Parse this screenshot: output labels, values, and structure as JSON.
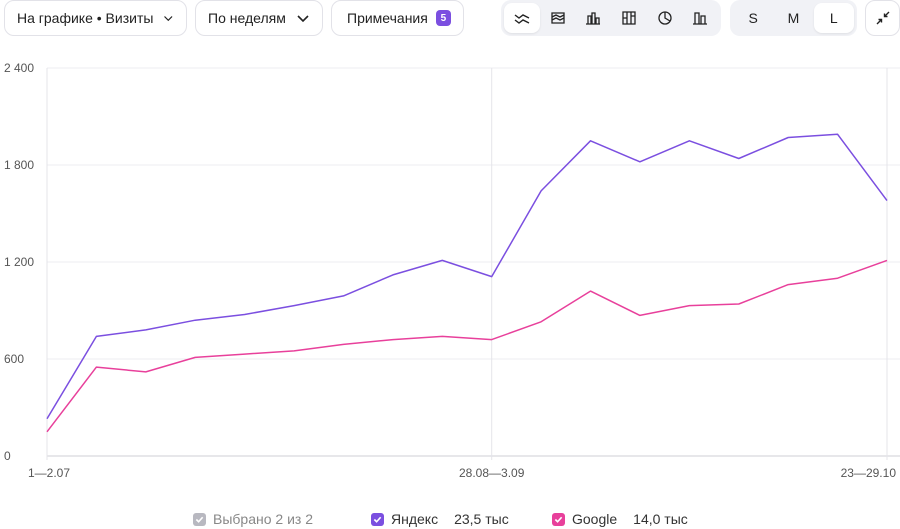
{
  "toolbar": {
    "metric_dropdown": "На графике • Визиты",
    "period_dropdown": "По неделям",
    "notes_label": "Примечания",
    "notes_count": "5",
    "chart_type_icons": [
      "line-chart-icon",
      "area-chart-icon",
      "column-chart-icon",
      "stacked-column-icon",
      "pie-chart-icon",
      "bar-chart-icon"
    ],
    "sizes": [
      "S",
      "M",
      "L"
    ],
    "active_size": "L"
  },
  "legend": {
    "selected_label": "Выбрано 2 из 2",
    "items": [
      {
        "name": "Яндекс",
        "total": "23,5 тыс",
        "color": "#7b4fe0"
      },
      {
        "name": "Google",
        "total": "14,0 тыс",
        "color": "#e8409b"
      }
    ]
  },
  "chart_data": {
    "type": "line",
    "x_tick_labels": [
      "1—2.07",
      "28.08—3.09",
      "23—29.10"
    ],
    "x_tick_indices": [
      0,
      9,
      17
    ],
    "y_ticks": [
      "0",
      "600",
      "1 200",
      "1 800",
      "2 400"
    ],
    "ylim": [
      0,
      2400
    ],
    "grid": true,
    "series": [
      {
        "name": "Яндекс",
        "color": "#7b4fe0",
        "values": [
          230,
          740,
          780,
          840,
          875,
          930,
          990,
          1120,
          1210,
          1110,
          1640,
          1950,
          1820,
          1950,
          1840,
          1970,
          1990,
          1580
        ]
      },
      {
        "name": "Google",
        "color": "#e8409b",
        "values": [
          150,
          550,
          520,
          610,
          630,
          650,
          690,
          720,
          740,
          720,
          830,
          1020,
          870,
          930,
          940,
          1060,
          1100,
          1210
        ]
      }
    ]
  }
}
